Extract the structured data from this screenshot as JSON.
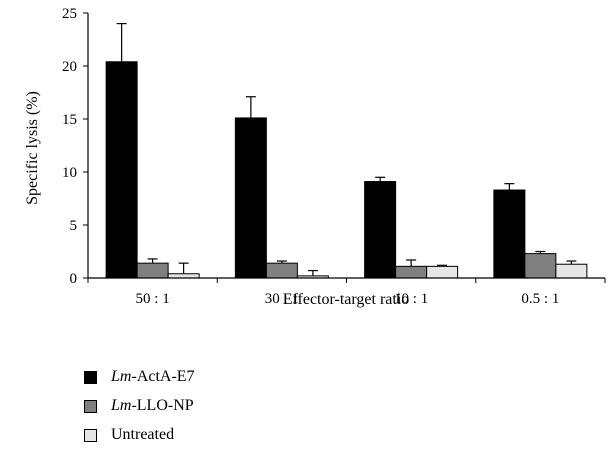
{
  "chart_data": {
    "type": "bar",
    "categories": [
      "50 : 1",
      "30 : 1",
      "10 : 1",
      "0.5 : 1"
    ],
    "series": [
      {
        "name": "Lm-ActA-E7",
        "name_italic": "Lm",
        "name_rest": "-ActA-E7",
        "color": "#000000",
        "values": [
          20.4,
          15.1,
          9.1,
          8.3
        ],
        "errors": [
          3.6,
          2.0,
          0.4,
          0.6
        ]
      },
      {
        "name": "Lm-LLO-NP",
        "name_italic": "Lm",
        "name_rest": "-LLO-NP",
        "color": "#808080",
        "values": [
          1.4,
          1.4,
          1.1,
          2.3
        ],
        "errors": [
          0.4,
          0.2,
          0.6,
          0.2
        ]
      },
      {
        "name": "Untreated",
        "name_italic": "",
        "name_rest": "Untreated",
        "color": "#e6e6e6",
        "values": [
          0.4,
          0.2,
          1.1,
          1.3
        ],
        "errors": [
          1.0,
          0.5,
          0.1,
          0.3
        ]
      }
    ],
    "ylim": [
      0,
      25
    ],
    "yticks": [
      0,
      5,
      10,
      15,
      20,
      25
    ],
    "xlabel": "Effector-target ratio",
    "ylabel": "Specific lysis (%)",
    "legend_position": "bottom-left",
    "grid": false
  }
}
